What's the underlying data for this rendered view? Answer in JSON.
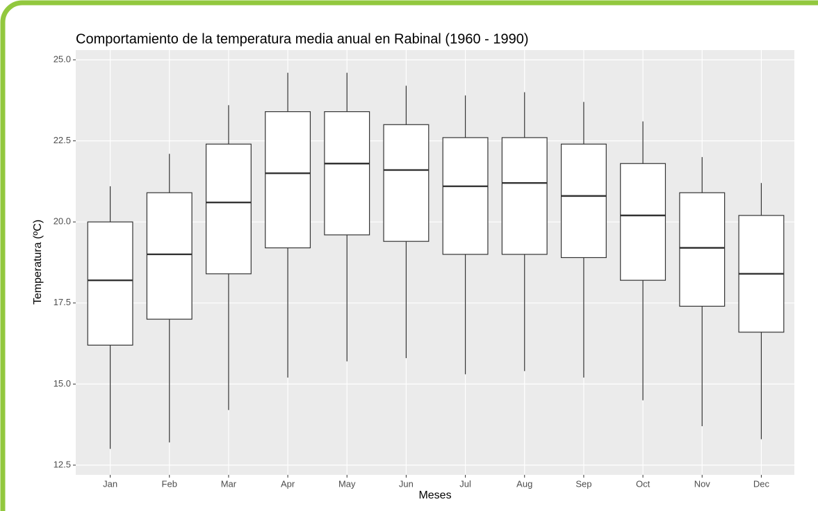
{
  "chart_data": {
    "type": "boxplot",
    "title": "Comportamiento de la temperatura media anual en Rabinal (1960 - 1990)",
    "x_label": "Meses",
    "y_label": "Temperatura (ºC)",
    "categories": [
      "Jan",
      "Feb",
      "Mar",
      "Apr",
      "May",
      "Jun",
      "Jul",
      "Aug",
      "Sep",
      "Oct",
      "Nov",
      "Dec"
    ],
    "series": [
      {
        "name": "Temperatura",
        "color": "#ffffff",
        "min": [
          13.0,
          13.2,
          14.2,
          15.2,
          15.7,
          15.8,
          15.3,
          15.4,
          15.2,
          14.5,
          13.7,
          13.3
        ],
        "q1": [
          16.2,
          17.0,
          18.4,
          19.2,
          19.6,
          19.4,
          19.0,
          19.0,
          18.9,
          18.2,
          17.4,
          16.6
        ],
        "median": [
          18.2,
          19.0,
          20.6,
          21.5,
          21.8,
          21.6,
          21.1,
          21.2,
          20.8,
          20.2,
          19.2,
          18.4
        ],
        "q3": [
          20.0,
          20.9,
          22.4,
          23.4,
          23.4,
          23.0,
          22.6,
          22.6,
          22.4,
          21.8,
          20.9,
          20.2
        ],
        "max": [
          21.1,
          22.1,
          23.6,
          24.6,
          24.6,
          24.2,
          23.9,
          24.0,
          23.7,
          23.1,
          22.0,
          21.2
        ]
      }
    ],
    "ylim": [
      12.2,
      25.3
    ],
    "yticks": [
      12.5,
      {
        "value": 15,
        "label": "15.0"
      },
      17.5,
      {
        "value": 20,
        "label": "20.0"
      },
      22.5,
      {
        "value": 25,
        "label": "25.0"
      }
    ],
    "grid": true
  }
}
